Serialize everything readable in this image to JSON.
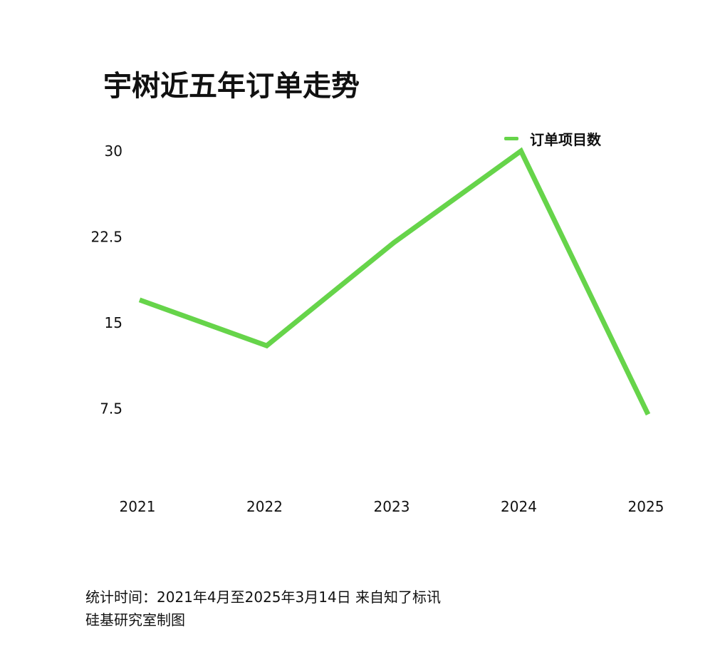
{
  "chart_data": {
    "type": "line",
    "title": "宇树近五年订单走势",
    "categories": [
      "2021",
      "2022",
      "2023",
      "2024",
      "2025"
    ],
    "series": [
      {
        "name": "订单项目数",
        "values": [
          17,
          13,
          22,
          30,
          7
        ],
        "color": "#66d44a"
      }
    ],
    "yticks": [
      "30",
      "22.5",
      "15",
      "7.5"
    ],
    "ytick_values": [
      30,
      22.5,
      15,
      7.5
    ],
    "xlabel": "",
    "ylabel": "",
    "grid": false,
    "legend_position": "top-right"
  },
  "footer": {
    "line1": "统计时间：2021年4月至2025年3月14日 来自知了标讯",
    "line2": "硅基研究室制图"
  }
}
